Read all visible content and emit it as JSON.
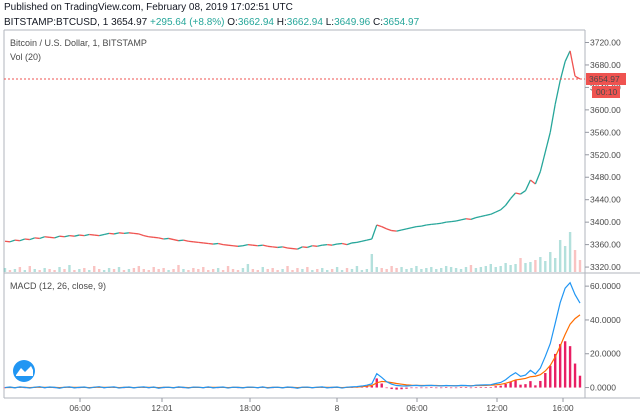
{
  "header": {
    "published": "Published on TradingView.com, February 08, 2019 17:02:51 UTC",
    "symbol": "BITSTAMP:BTCUSD, 1",
    "last": "3654.97",
    "change": "+295.64 (+8.8%)",
    "o_label": "O:",
    "o_value": "3662.94",
    "h_label": "H:",
    "h_value": "3662.94",
    "l_label": "L:",
    "l_value": "3649.96",
    "c_label": "C:",
    "c_value": "3654.97"
  },
  "price_pane": {
    "legend_title": "Bitcoin / U.S. Dollar, 1, BITSTAMP",
    "legend_volume": "Vol (20)",
    "last_price_label": "3654.97",
    "countdown_label": "00:10"
  },
  "macd_pane": {
    "legend": "MACD (12, 26, close, 9)"
  },
  "colors": {
    "up": "#26a69a",
    "down": "#ef5350",
    "macd_line": "#2196f3",
    "signal_line": "#ff6d00",
    "histogram": "#e91e63",
    "last_price_line": "#ef5350"
  },
  "chart_data": [
    {
      "type": "line",
      "title": "",
      "xlabel": "",
      "ylabel": "",
      "x_ticks": [
        "06:00",
        "12:01",
        "18:00",
        "8",
        "06:00",
        "12:00",
        "16:00"
      ],
      "y_ticks": [
        3320,
        3360,
        3400,
        3440,
        3480,
        3520,
        3560,
        3600,
        3640,
        3680,
        3720
      ],
      "ylim": [
        3313,
        3728
      ],
      "grid": false,
      "series": [
        {
          "values": [
            3366,
            3365,
            3368,
            3367,
            3370,
            3369,
            3372,
            3371,
            3374,
            3373,
            3372,
            3375,
            3374,
            3376,
            3375,
            3377,
            3376,
            3378,
            3377,
            3376,
            3378,
            3380,
            3379,
            3381,
            3380,
            3381,
            3380,
            3379,
            3376,
            3374,
            3373,
            3372,
            3370,
            3371,
            3369,
            3367,
            3368,
            3366,
            3365,
            3364,
            3363,
            3362,
            3361,
            3362,
            3360,
            3359,
            3358,
            3357,
            3358,
            3360,
            3359,
            3358,
            3359,
            3357,
            3356,
            3355,
            3356,
            3354,
            3353,
            3352,
            3356,
            3355,
            3358,
            3357,
            3359,
            3360,
            3359,
            3361,
            3362,
            3360,
            3363,
            3364,
            3366,
            3368,
            3370,
            3395,
            3392,
            3388,
            3385,
            3384,
            3386,
            3388,
            3390,
            3392,
            3393,
            3395,
            3396,
            3397,
            3398,
            3400,
            3401,
            3402,
            3404,
            3406,
            3405,
            3408,
            3410,
            3412,
            3414,
            3418,
            3422,
            3430,
            3442,
            3452,
            3450,
            3456,
            3475,
            3468,
            3490,
            3525,
            3560,
            3610,
            3652,
            3686,
            3705,
            3660,
            3655
          ]
        }
      ]
    },
    {
      "type": "bar",
      "title": "",
      "ylabel": "",
      "values": [
        4,
        2,
        3,
        5,
        2,
        6,
        3,
        2,
        4,
        3,
        2,
        5,
        3,
        7,
        2,
        3,
        4,
        2,
        6,
        3,
        2,
        4,
        3,
        5,
        2,
        3,
        4,
        6,
        3,
        2,
        5,
        3,
        4,
        2,
        3,
        7,
        3,
        2,
        4,
        3,
        5,
        2,
        3,
        4,
        2,
        6,
        3,
        2,
        4,
        8,
        3,
        2,
        5,
        3,
        4,
        2,
        3,
        6,
        2,
        4,
        3,
        5,
        2,
        3,
        4,
        2,
        3,
        5,
        2,
        4,
        3,
        6,
        2,
        3,
        18,
        5,
        4,
        3,
        6,
        4,
        5,
        3,
        4,
        6,
        3,
        4,
        5,
        3,
        4,
        6,
        5,
        4,
        3,
        5,
        7,
        4,
        5,
        6,
        8,
        5,
        6,
        9,
        7,
        8,
        14,
        9,
        10,
        12,
        15,
        11,
        20,
        14,
        32,
        26,
        40,
        22,
        12
      ]
    },
    {
      "type": "line",
      "title": "",
      "y_ticks": [
        "0.0000",
        "20.0000",
        "40.0000",
        "60.0000"
      ],
      "ylim": [
        -5,
        66
      ],
      "series": [
        {
          "values": [
            0,
            0.3,
            -0.2,
            0.4,
            0.1,
            -0.3,
            0.2,
            0.5,
            -0.1,
            0.3,
            0.1,
            -0.4,
            0.2,
            0.4,
            -0.2,
            0.1,
            0.3,
            -0.3,
            0.2,
            0.5,
            -0.1,
            0.2,
            0.4,
            -0.3,
            0.1,
            0.3,
            -0.2,
            0.2,
            0.4,
            -0.1,
            0.3,
            -0.4,
            0.1,
            0.2,
            -0.2,
            0.4,
            0.1,
            -0.3,
            0.3,
            0.2,
            -0.1,
            0.4,
            -0.2,
            0.1,
            0.3,
            -0.3,
            0.2,
            0.1,
            -0.2,
            0.3,
            0.2,
            -0.1,
            0.4,
            -0.3,
            0.1,
            0.2,
            -0.2,
            0.3,
            0.1,
            -0.4,
            0.2,
            0.3,
            -0.1,
            0.2,
            0.4,
            -0.2,
            0.1,
            0.3,
            -0.3,
            0.2,
            0.4,
            0.6,
            0.9,
            1.4,
            2.2,
            8.2,
            6.0,
            3.4,
            2.0,
            1.2,
            1.0,
            0.9,
            1.1,
            1.3,
            1.0,
            1.2,
            1.3,
            1.1,
            1.0,
            1.2,
            1.1,
            1.0,
            1.3,
            1.2,
            0.9,
            1.4,
            1.5,
            1.6,
            1.7,
            2.4,
            3.0,
            4.6,
            7.0,
            8.8,
            6.6,
            7.4,
            10.2,
            8.0,
            11.5,
            18.4,
            26.0,
            38.0,
            50.2,
            58.8,
            62.0,
            55.0,
            50.0
          ]
        },
        {
          "values": [
            0,
            0.1,
            0,
            0.2,
            0.1,
            0,
            0.1,
            0.2,
            0.1,
            0.1,
            0.1,
            0,
            0.1,
            0.2,
            0.1,
            0.1,
            0.1,
            0,
            0.1,
            0.2,
            0.1,
            0.1,
            0.2,
            0,
            0.1,
            0.1,
            0,
            0.1,
            0.2,
            0.1,
            0.1,
            0,
            0.1,
            0.1,
            0,
            0.2,
            0.1,
            0,
            0.1,
            0.1,
            0,
            0.2,
            0.1,
            0.1,
            0.1,
            0,
            0.1,
            0.1,
            0,
            0.1,
            0.1,
            0,
            0.2,
            0,
            0.1,
            0.1,
            0,
            0.1,
            0.1,
            0,
            0.1,
            0.1,
            0,
            0.1,
            0.2,
            0.1,
            0.1,
            0.1,
            0,
            0.1,
            0.2,
            0.3,
            0.5,
            0.8,
            1.2,
            2.8,
            3.6,
            3.4,
            2.9,
            2.4,
            2.0,
            1.6,
            1.4,
            1.3,
            1.2,
            1.2,
            1.2,
            1.2,
            1.1,
            1.1,
            1.1,
            1.1,
            1.1,
            1.1,
            1.1,
            1.2,
            1.2,
            1.3,
            1.4,
            1.6,
            1.9,
            2.5,
            3.4,
            4.5,
            4.9,
            5.4,
            6.4,
            6.7,
            7.6,
            9.8,
            13.1,
            18.1,
            24.5,
            31.4,
            37.5,
            40.8,
            43.0
          ]
        },
        {
          "values": [
            0,
            0.2,
            -0.2,
            0.2,
            0,
            -0.3,
            0.1,
            0.3,
            -0.2,
            0.2,
            0,
            -0.4,
            0.1,
            0.2,
            -0.3,
            0,
            0.2,
            -0.3,
            0.1,
            0.3,
            -0.2,
            0.1,
            0.2,
            -0.3,
            0,
            0.2,
            -0.2,
            0.1,
            0.2,
            -0.2,
            0.2,
            -0.4,
            0,
            0.1,
            -0.2,
            0.2,
            0,
            -0.3,
            0.2,
            0.1,
            -0.1,
            0.2,
            -0.3,
            0,
            0.2,
            -0.3,
            0.1,
            0,
            -0.2,
            0.2,
            0.1,
            -0.1,
            0.2,
            -0.3,
            0,
            0.1,
            -0.2,
            0.2,
            0,
            -0.4,
            0.1,
            0.2,
            -0.1,
            0.1,
            0.2,
            -0.3,
            0,
            0.2,
            -0.3,
            0.1,
            0.2,
            0.3,
            0.4,
            0.6,
            1.0,
            5.4,
            2.4,
            0,
            -0.9,
            -1.2,
            -1.0,
            -0.7,
            -0.3,
            0,
            -0.2,
            0,
            0.1,
            -0.1,
            -0.1,
            0.1,
            0,
            -0.1,
            0.2,
            0.1,
            -0.2,
            0.2,
            0.3,
            0.3,
            0.3,
            0.8,
            1.1,
            2.1,
            3.6,
            4.3,
            1.7,
            2.0,
            3.8,
            1.3,
            3.9,
            8.6,
            12.9,
            19.9,
            25.7,
            27.4,
            24.5,
            14.2,
            7.0
          ]
        }
      ]
    }
  ]
}
